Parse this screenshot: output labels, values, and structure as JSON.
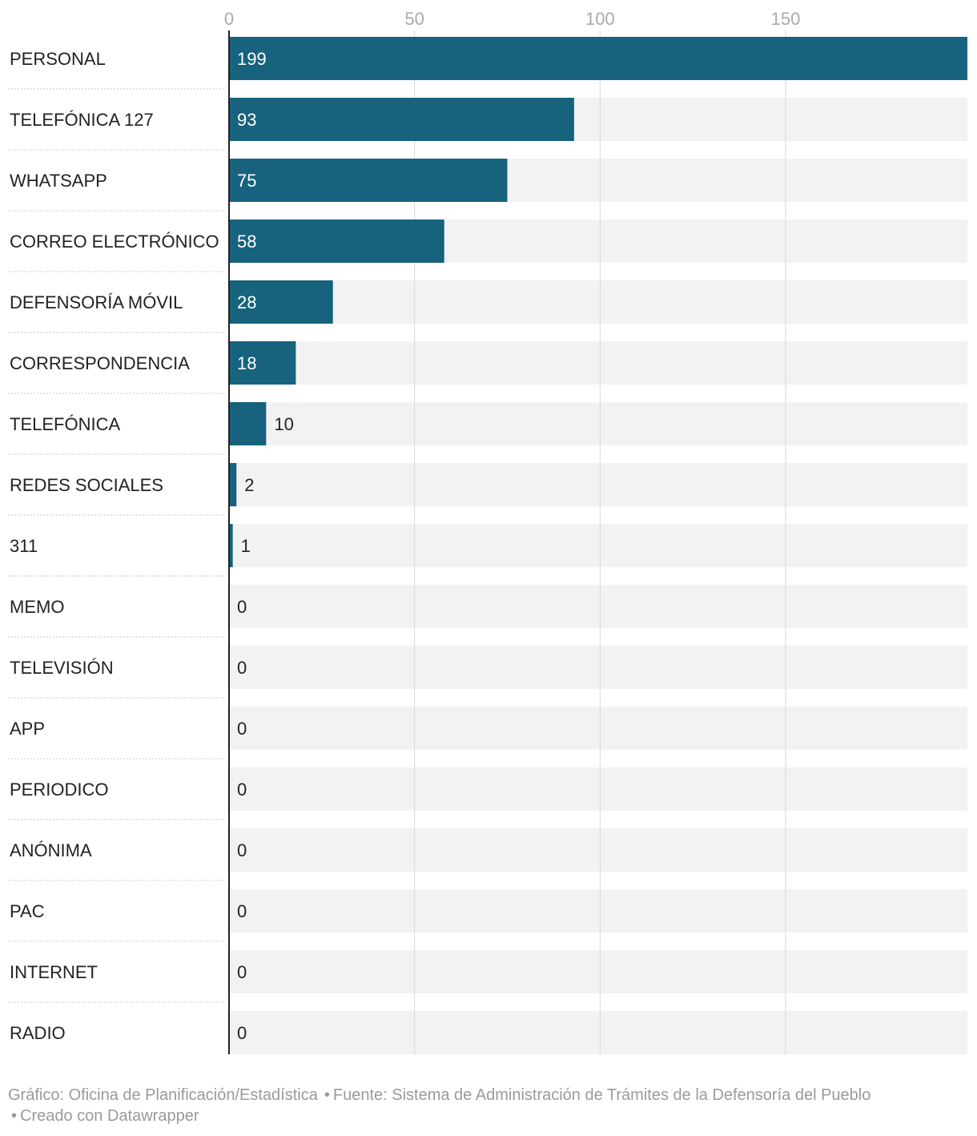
{
  "chart_data": {
    "type": "bar",
    "orientation": "horizontal",
    "categories": [
      "PERSONAL",
      "TELEFÓNICA 127",
      "WHATSAPP",
      "CORREO ELECTRÓNICO",
      "DEFENSORÍA MÓVIL",
      "CORRESPONDENCIA",
      "TELEFÓNICA",
      "REDES SOCIALES",
      "311",
      "MEMO",
      "TELEVISIÓN",
      "APP",
      "PERIODICO",
      "ANÓNIMA",
      "PAC",
      "INTERNET",
      "RADIO"
    ],
    "values": [
      199,
      93,
      75,
      58,
      28,
      18,
      10,
      2,
      1,
      0,
      0,
      0,
      0,
      0,
      0,
      0,
      0
    ],
    "xlim": [
      0,
      199
    ],
    "xticks": [
      0,
      50,
      100,
      150
    ],
    "grid": true,
    "colors": {
      "bar": "#17627d",
      "track": "#f2f2f2",
      "label_inside": "#ffffff",
      "label_outside": "#222222",
      "tick": "#aaaaaa",
      "gridline": "#d8d8d8",
      "axis": "#222222"
    }
  },
  "footer": {
    "chart_credit": "Gráfico: Oficina de Planificación/Estadística",
    "source": "Fuente: Sistema de Administración de Trámites de la Defensoría del Pueblo",
    "tool": "Creado con Datawrapper"
  }
}
